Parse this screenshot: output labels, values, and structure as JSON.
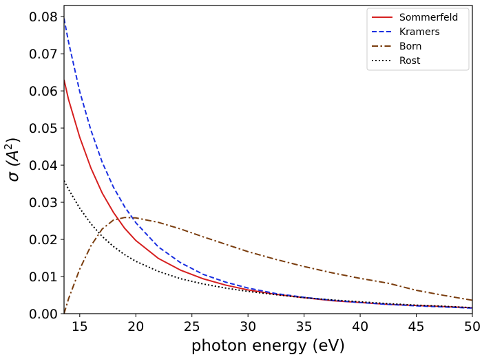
{
  "chart_data": {
    "type": "line",
    "title": "",
    "xlabel": "photon energy (eV)",
    "ylabel": "σ (A²)",
    "ylabel_parts": {
      "prefix": "σ (",
      "var": "A",
      "sup": "2",
      "suffix": ")"
    },
    "xlim": [
      13.6,
      50
    ],
    "ylim": [
      0,
      0.083
    ],
    "xticks": [
      15,
      20,
      25,
      30,
      35,
      40,
      45,
      50
    ],
    "xtick_labels": [
      "15",
      "20",
      "25",
      "30",
      "35",
      "40",
      "45",
      "50"
    ],
    "yticks": [
      0,
      0.01,
      0.02,
      0.03,
      0.04,
      0.05,
      0.06,
      0.07,
      0.08
    ],
    "ytick_labels": [
      "0.00",
      "0.01",
      "0.02",
      "0.03",
      "0.04",
      "0.05",
      "0.06",
      "0.07",
      "0.08"
    ],
    "grid": false,
    "legend_position": "top-right",
    "x": [
      13.6,
      14,
      15,
      16,
      17,
      18,
      19,
      20,
      22,
      24,
      26,
      28,
      30,
      32.5,
      35,
      37.5,
      40,
      42.5,
      45,
      47.5,
      50
    ],
    "series": [
      {
        "name": "Sommerfeld",
        "color": "#d62020",
        "dash": "solid",
        "values": [
          0.063,
          0.0577,
          0.0475,
          0.0392,
          0.0325,
          0.0273,
          0.023,
          0.0197,
          0.0149,
          0.0117,
          0.0094,
          0.0077,
          0.0064,
          0.0052,
          0.0043,
          0.0035,
          0.003,
          0.0025,
          0.0022,
          0.0019,
          0.0016
        ]
      },
      {
        "name": "Kramers",
        "color": "#1a2fe0",
        "dash": "dashed",
        "values": [
          0.0795,
          0.0732,
          0.0598,
          0.0494,
          0.0408,
          0.0341,
          0.0288,
          0.0245,
          0.018,
          0.0137,
          0.0106,
          0.0085,
          0.0069,
          0.0054,
          0.0044,
          0.0036,
          0.003,
          0.0025,
          0.0021,
          0.0018,
          0.0015
        ]
      },
      {
        "name": "Born",
        "color": "#7a3d0e",
        "dash": "dashdot",
        "values": [
          0.0,
          0.004,
          0.012,
          0.0183,
          0.0228,
          0.0252,
          0.0259,
          0.0258,
          0.0246,
          0.0228,
          0.0207,
          0.0187,
          0.0167,
          0.0146,
          0.0127,
          0.011,
          0.0095,
          0.0082,
          0.0063,
          0.0049,
          0.0036
        ]
      },
      {
        "name": "Rost",
        "color": "#000000",
        "dash": "dotted",
        "values": [
          0.0358,
          0.0335,
          0.0284,
          0.0242,
          0.0208,
          0.0181,
          0.0159,
          0.0141,
          0.0114,
          0.0094,
          0.008,
          0.0069,
          0.006,
          0.0051,
          0.0043,
          0.0037,
          0.0032,
          0.0027,
          0.0023,
          0.002,
          0.0016
        ]
      }
    ]
  }
}
